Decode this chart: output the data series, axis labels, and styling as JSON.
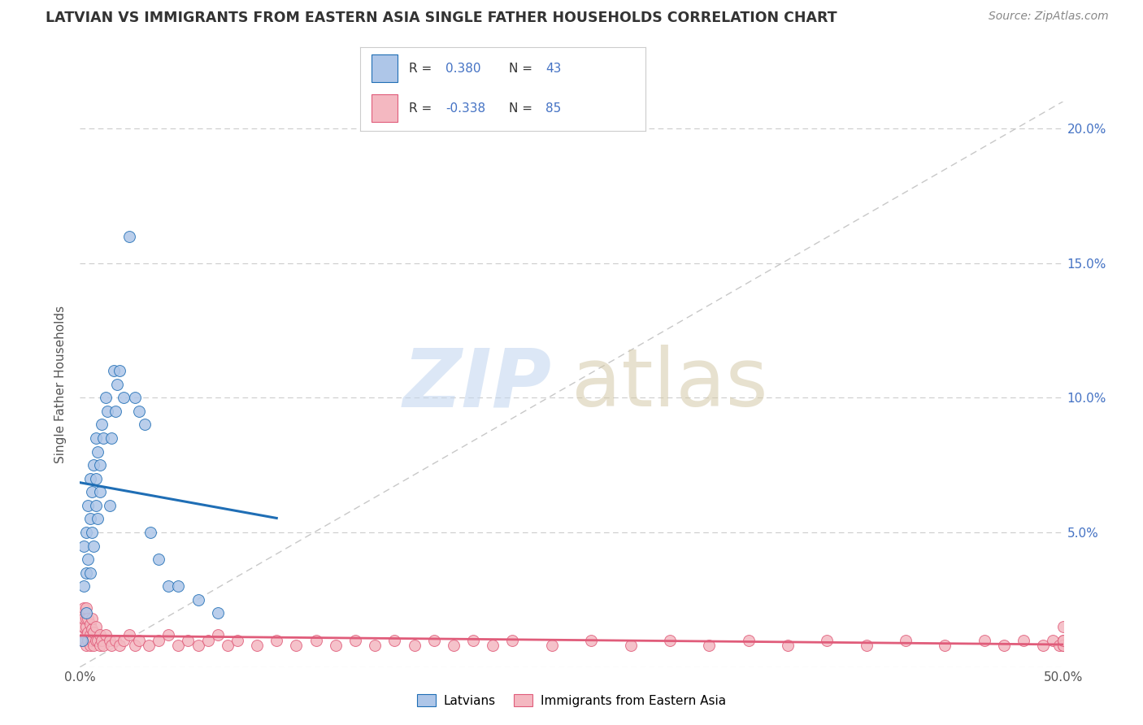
{
  "title": "LATVIAN VS IMMIGRANTS FROM EASTERN ASIA SINGLE FATHER HOUSEHOLDS CORRELATION CHART",
  "source": "Source: ZipAtlas.com",
  "ylabel": "Single Father Households",
  "xlim": [
    0.0,
    0.5
  ],
  "ylim": [
    0.0,
    0.21
  ],
  "y_ticks": [
    0.0,
    0.05,
    0.1,
    0.15,
    0.2
  ],
  "y_tick_labels_right": [
    "",
    "5.0%",
    "10.0%",
    "15.0%",
    "20.0%"
  ],
  "legend_latvians_R": "0.380",
  "legend_latvians_N": "43",
  "legend_immigrants_R": "-0.338",
  "legend_immigrants_N": "85",
  "color_latvian": "#aec6e8",
  "color_immigrant": "#f4b8c1",
  "color_latvian_line": "#1f6eb5",
  "color_immigrant_line": "#e05c7a",
  "color_text_blue": "#4472c4",
  "latvian_x": [
    0.001,
    0.002,
    0.002,
    0.003,
    0.003,
    0.003,
    0.004,
    0.004,
    0.005,
    0.005,
    0.005,
    0.006,
    0.006,
    0.007,
    0.007,
    0.008,
    0.008,
    0.008,
    0.009,
    0.009,
    0.01,
    0.01,
    0.011,
    0.012,
    0.013,
    0.014,
    0.015,
    0.016,
    0.017,
    0.018,
    0.019,
    0.02,
    0.022,
    0.025,
    0.028,
    0.03,
    0.033,
    0.036,
    0.04,
    0.045,
    0.05,
    0.06,
    0.07
  ],
  "latvian_y": [
    0.01,
    0.03,
    0.045,
    0.02,
    0.035,
    0.05,
    0.04,
    0.06,
    0.035,
    0.055,
    0.07,
    0.05,
    0.065,
    0.045,
    0.075,
    0.06,
    0.07,
    0.085,
    0.055,
    0.08,
    0.065,
    0.075,
    0.09,
    0.085,
    0.1,
    0.095,
    0.06,
    0.085,
    0.11,
    0.095,
    0.105,
    0.11,
    0.1,
    0.16,
    0.1,
    0.095,
    0.09,
    0.05,
    0.04,
    0.03,
    0.03,
    0.025,
    0.02
  ],
  "immigrant_x": [
    0.001,
    0.001,
    0.001,
    0.002,
    0.002,
    0.002,
    0.002,
    0.003,
    0.003,
    0.003,
    0.003,
    0.003,
    0.004,
    0.004,
    0.004,
    0.005,
    0.005,
    0.005,
    0.006,
    0.006,
    0.006,
    0.007,
    0.007,
    0.008,
    0.008,
    0.009,
    0.01,
    0.01,
    0.011,
    0.012,
    0.013,
    0.015,
    0.016,
    0.018,
    0.02,
    0.022,
    0.025,
    0.028,
    0.03,
    0.035,
    0.04,
    0.045,
    0.05,
    0.055,
    0.06,
    0.065,
    0.07,
    0.075,
    0.08,
    0.09,
    0.1,
    0.11,
    0.12,
    0.13,
    0.14,
    0.15,
    0.16,
    0.17,
    0.18,
    0.19,
    0.2,
    0.21,
    0.22,
    0.24,
    0.26,
    0.28,
    0.3,
    0.32,
    0.34,
    0.36,
    0.38,
    0.4,
    0.42,
    0.44,
    0.46,
    0.47,
    0.48,
    0.49,
    0.495,
    0.498,
    0.5,
    0.5,
    0.5,
    0.5,
    0.5
  ],
  "immigrant_y": [
    0.01,
    0.015,
    0.02,
    0.01,
    0.015,
    0.018,
    0.022,
    0.008,
    0.012,
    0.015,
    0.018,
    0.022,
    0.01,
    0.013,
    0.018,
    0.008,
    0.012,
    0.016,
    0.01,
    0.014,
    0.018,
    0.008,
    0.013,
    0.01,
    0.015,
    0.01,
    0.008,
    0.012,
    0.01,
    0.008,
    0.012,
    0.01,
    0.008,
    0.01,
    0.008,
    0.01,
    0.012,
    0.008,
    0.01,
    0.008,
    0.01,
    0.012,
    0.008,
    0.01,
    0.008,
    0.01,
    0.012,
    0.008,
    0.01,
    0.008,
    0.01,
    0.008,
    0.01,
    0.008,
    0.01,
    0.008,
    0.01,
    0.008,
    0.01,
    0.008,
    0.01,
    0.008,
    0.01,
    0.008,
    0.01,
    0.008,
    0.01,
    0.008,
    0.01,
    0.008,
    0.01,
    0.008,
    0.01,
    0.008,
    0.01,
    0.008,
    0.01,
    0.008,
    0.01,
    0.008,
    0.008,
    0.01,
    0.008,
    0.01,
    0.015
  ]
}
